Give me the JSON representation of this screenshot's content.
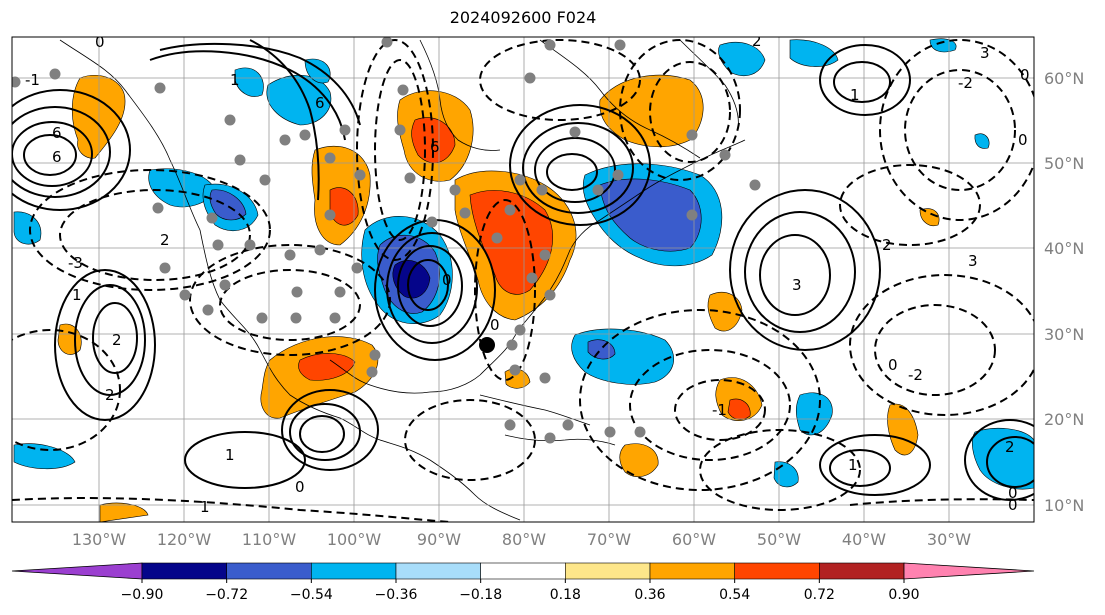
{
  "title": "2024092600 F024",
  "latitude_labels": [
    "60°N",
    "50°N",
    "40°N",
    "30°N",
    "20°N",
    "10°N"
  ],
  "longitude_labels": [
    "130°W",
    "120°W",
    "110°W",
    "100°W",
    "90°W",
    "80°W",
    "70°W",
    "60°W",
    "50°W",
    "40°W",
    "30°W"
  ],
  "colorbar": {
    "tick_labels": [
      "−0.90",
      "−0.72",
      "−0.54",
      "−0.36",
      "−0.18",
      "0.18",
      "0.36",
      "0.54",
      "0.72",
      "0.90"
    ],
    "colors": [
      "#9b3fd0",
      "#05058a",
      "#3a5ccc",
      "#00b4f0",
      "#a8ddfa",
      "#ffffff",
      "#fde68a",
      "#ffa500",
      "#ff4500",
      "#b22222",
      "#ff82b0"
    ]
  },
  "contour_labels": [
    "0",
    "6",
    "6",
    "6",
    "2",
    "3",
    "1",
    "0",
    "-3",
    "2",
    "3",
    "2",
    "1",
    "0",
    "6",
    "0",
    "3",
    "1",
    "-1",
    "1",
    "2",
    "0",
    "-2",
    "0",
    "1",
    "-2",
    "2",
    "0",
    "0",
    "1",
    "2",
    "0",
    "-1"
  ]
}
